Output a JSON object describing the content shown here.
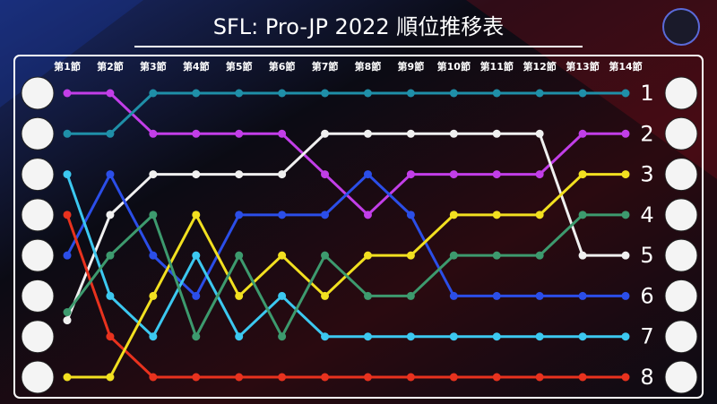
{
  "chart_data": {
    "type": "bump",
    "title": "SFL: Pro-JP 2022 順位推移表",
    "categories": [
      "第1節",
      "第2節",
      "第3節",
      "第4節",
      "第5節",
      "第6節",
      "第7節",
      "第8節",
      "第9節",
      "第10節",
      "第11節",
      "第12節",
      "第13節",
      "第14節"
    ],
    "ylim": [
      8,
      1
    ],
    "yticks": [
      1,
      2,
      3,
      4,
      5,
      6,
      7,
      8
    ],
    "series": [
      {
        "color": "#c23ee8",
        "values": [
          1,
          1,
          2,
          2,
          2,
          2,
          3,
          4,
          3,
          3,
          3,
          3,
          2,
          2
        ]
      },
      {
        "color": "#1f8fa8",
        "values": [
          2,
          2,
          1,
          1,
          1,
          1,
          1,
          1,
          1,
          1,
          1,
          1,
          1,
          1
        ]
      },
      {
        "color": "#f0f0f0",
        "values": [
          6.6,
          4,
          3,
          3,
          3,
          3,
          2,
          2,
          2,
          2,
          2,
          2,
          5,
          5
        ]
      },
      {
        "color": "#2b4ee8",
        "values": [
          5,
          3,
          5,
          6,
          4,
          4,
          4,
          3,
          4,
          6,
          6,
          6,
          6,
          6
        ]
      },
      {
        "color": "#3cc8f0",
        "values": [
          3,
          6,
          7,
          5,
          7,
          6,
          7,
          7,
          7,
          7,
          7,
          7,
          7,
          7
        ]
      },
      {
        "color": "#e8321e",
        "values": [
          4,
          7,
          8,
          8,
          8,
          8,
          8,
          8,
          8,
          8,
          8,
          8,
          8,
          8
        ]
      },
      {
        "color": "#f2e020",
        "values": [
          8,
          8,
          6,
          4,
          6,
          5,
          6,
          5,
          5,
          4,
          4,
          4,
          3,
          3
        ]
      },
      {
        "color": "#3d9a6e",
        "values": [
          6.4,
          5,
          4,
          7,
          5,
          7,
          5,
          6,
          6,
          5,
          5,
          5,
          4,
          4
        ]
      }
    ]
  }
}
